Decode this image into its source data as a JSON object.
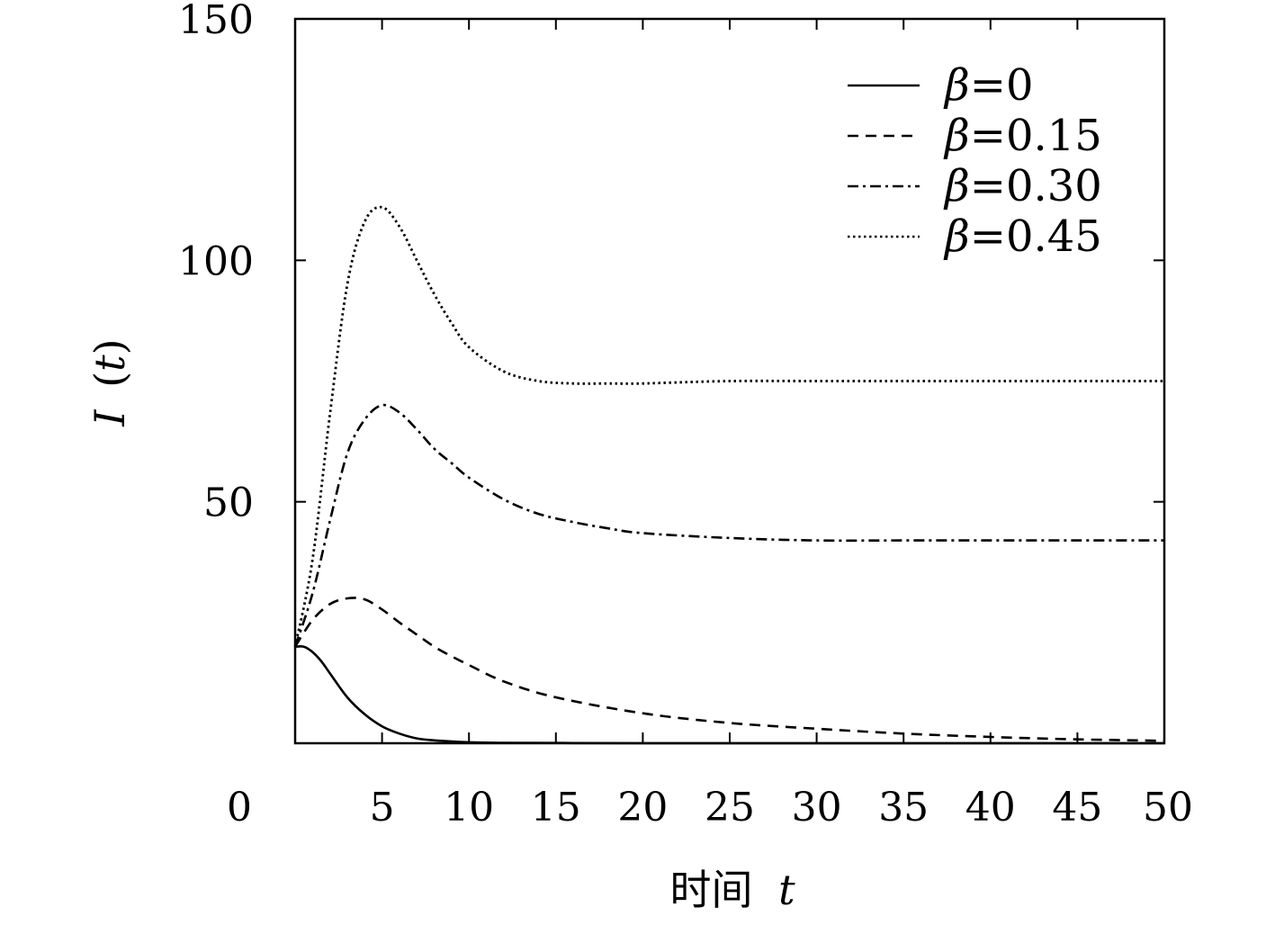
{
  "chart_data": {
    "type": "line",
    "title": "",
    "xlabel": "时间 t",
    "xlabel_prefix": "时间",
    "xlabel_var": "t",
    "ylabel": "I (t)",
    "ylabel_var": "I",
    "ylabel_arg": "(t)",
    "xlim": [
      0,
      50
    ],
    "ylim": [
      0,
      150
    ],
    "xticks": [
      "0",
      "5",
      "10",
      "15",
      "20",
      "25",
      "30",
      "35",
      "40",
      "45",
      "50"
    ],
    "yticks": [
      "50",
      "100",
      "150"
    ],
    "ytick_values": [
      50,
      100,
      150
    ],
    "legend_position": "top-right",
    "grid": false,
    "series": [
      {
        "name": "β=0",
        "greek": "β",
        "value_text": "=0",
        "style": "solid",
        "x": [
          0,
          0.5,
          1,
          1.5,
          2,
          3,
          4,
          5,
          6,
          7,
          8,
          10,
          12,
          15,
          20,
          30,
          40,
          50
        ],
        "y": [
          20,
          20,
          18.9,
          17.0,
          14.5,
          9.5,
          6.0,
          3.5,
          2.0,
          1.0,
          0.6,
          0.2,
          0.1,
          0.05,
          0,
          0,
          0,
          0
        ]
      },
      {
        "name": "β=0.15",
        "greek": "β",
        "value_text": "=0.15",
        "style": "dashed",
        "x": [
          0,
          1,
          2,
          3,
          4,
          5,
          6,
          7,
          8,
          9,
          10,
          12,
          15,
          20,
          25,
          30,
          35,
          40,
          45,
          50
        ],
        "y": [
          20,
          25.5,
          28.8,
          30.0,
          29.8,
          27.7,
          25.0,
          22.5,
          20.0,
          18.0,
          16.2,
          12.8,
          9.5,
          6.2,
          4.2,
          3.0,
          2.0,
          1.3,
          0.8,
          0.5
        ]
      },
      {
        "name": "β=0.30",
        "greek": "β",
        "value_text": "=0.30",
        "style": "dashdot",
        "x": [
          0,
          1,
          2,
          3,
          4,
          5,
          6,
          7,
          8,
          9,
          10,
          12,
          14,
          16,
          18,
          20,
          25,
          30,
          35,
          40,
          45,
          50
        ],
        "y": [
          20,
          31,
          46,
          60,
          67,
          70,
          68.5,
          65,
          61,
          58,
          55,
          50.5,
          47.5,
          45.8,
          44.5,
          43.5,
          42.5,
          42,
          42,
          42,
          42,
          42
        ]
      },
      {
        "name": "β=0.45",
        "greek": "β",
        "value_text": "=0.45",
        "style": "dotted",
        "x": [
          0,
          1,
          2,
          3,
          4,
          5,
          6,
          7,
          8,
          9,
          10,
          12,
          14,
          16,
          18,
          20,
          25,
          30,
          35,
          40,
          45,
          50
        ],
        "y": [
          20,
          38,
          68,
          95,
          108,
          111,
          107,
          100,
          93,
          87,
          82,
          77,
          75,
          74.5,
          74.5,
          74.5,
          75,
          75,
          75,
          75,
          75,
          75
        ]
      }
    ]
  }
}
